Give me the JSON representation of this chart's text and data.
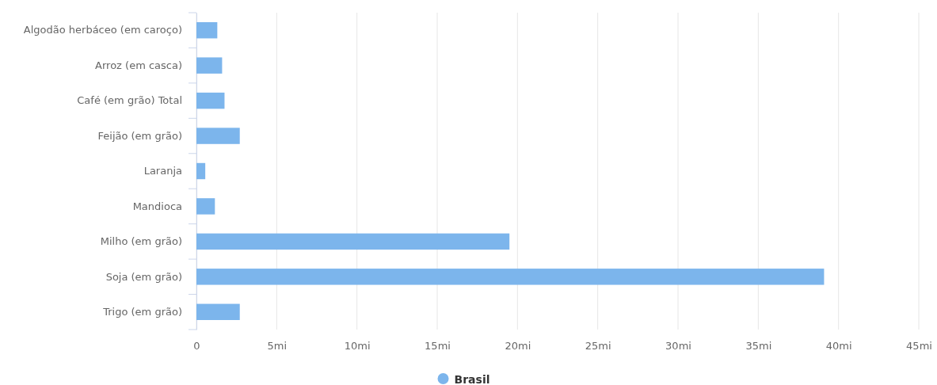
{
  "chart_data": {
    "type": "bar",
    "orientation": "horizontal",
    "categories": [
      "Algodão herbáceo (em caroço)",
      "Arroz (em casca)",
      "Café (em grão) Total",
      "Feijão (em grão)",
      "Laranja",
      "Mandioca",
      "Milho (em grão)",
      "Soja (em grão)",
      "Trigo (em grão)"
    ],
    "series": [
      {
        "name": "Brasil",
        "color": "#7cb5ec",
        "values": [
          1.3,
          1.6,
          1.75,
          2.7,
          0.55,
          1.15,
          19.5,
          39.1,
          2.7
        ]
      }
    ],
    "xlim": [
      0,
      45
    ],
    "xticks": [
      0,
      {
        "value": 5,
        "label": "5mi"
      },
      {
        "value": 10,
        "label": "10mi"
      },
      {
        "value": 15,
        "label": "15mi"
      },
      {
        "value": 20,
        "label": "20mi"
      },
      {
        "value": 25,
        "label": "25mi"
      },
      {
        "value": 30,
        "label": "30mi"
      },
      {
        "value": 35,
        "label": "35mi"
      },
      {
        "value": 40,
        "label": "40mi"
      },
      {
        "value": 45,
        "label": "45mi"
      }
    ],
    "grid": "x",
    "legend": "bottom"
  }
}
